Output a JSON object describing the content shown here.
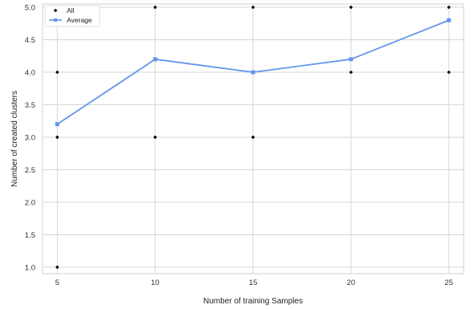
{
  "chart_data": {
    "type": "line",
    "xlabel": "Number of training Samples",
    "ylabel": "Number of created clusters",
    "x": [
      5,
      10,
      15,
      20,
      25
    ],
    "xticks": [
      "5",
      "10",
      "15",
      "20",
      "25"
    ],
    "yticks": [
      "1.0",
      "1.5",
      "2.0",
      "2.5",
      "3.0",
      "3.5",
      "4.0",
      "4.5",
      "5.0"
    ],
    "xlim": [
      4.25,
      25.75
    ],
    "ylim": [
      0.9,
      5.05
    ],
    "grid": true,
    "legend_position": "top-left",
    "series": [
      {
        "name": "All",
        "kind": "scatter",
        "color": "#000000",
        "points": [
          [
            5,
            4
          ],
          [
            5,
            3
          ],
          [
            5,
            1
          ],
          [
            10,
            5
          ],
          [
            10,
            4.2
          ],
          [
            10,
            3
          ],
          [
            15,
            5
          ],
          [
            15,
            4
          ],
          [
            15,
            3
          ],
          [
            20,
            5
          ],
          [
            20,
            4
          ],
          [
            25,
            5
          ],
          [
            25,
            4
          ]
        ]
      },
      {
        "name": "Average",
        "kind": "line",
        "color": "#6495ED",
        "marker": "square",
        "values": [
          3.2,
          4.2,
          4.0,
          4.2,
          4.8
        ]
      }
    ]
  }
}
